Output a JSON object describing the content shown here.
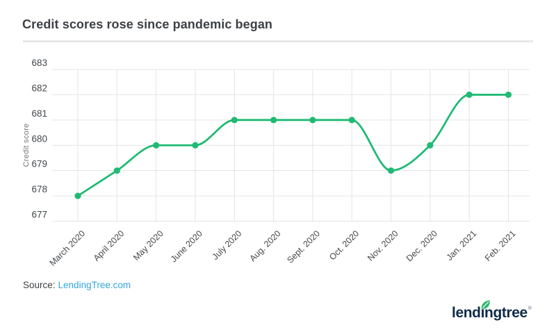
{
  "page": {
    "title": "Credit scores rose since pandemic began"
  },
  "source": {
    "prefix": "Source:",
    "link": "LendingTree.com"
  },
  "logo": {
    "text": "lendingtree",
    "registered": "®",
    "leaf_icon": "leaf-icon"
  },
  "colors": {
    "accent_green": "#1fba73",
    "leaf_green": "#2cb669",
    "link_blue": "#32a5dc",
    "logo_navy": "#0f2b4a",
    "grid_gray": "#e4e4e4",
    "axis_text": "#43474b",
    "muted_text": "#73777b",
    "title_text": "#3d4145",
    "divider_gray": "#e8e8e8"
  },
  "chart_data": {
    "type": "line",
    "title": "Credit scores rose since pandemic began",
    "xlabel": "",
    "ylabel": "Credit score",
    "categories": [
      "March 2020",
      "April 2020",
      "May 2020",
      "June 2020",
      "July 2020",
      "Aug. 2020",
      "Sept. 2020",
      "Oct. 2020",
      "Nov. 2020",
      "Dec. 2020",
      "Jan. 2021",
      "Feb. 2021"
    ],
    "series": [
      {
        "name": "Credit score",
        "values": [
          678,
          679,
          680,
          680,
          681,
          681,
          681,
          681,
          679,
          680,
          682,
          682
        ]
      }
    ],
    "ylim": [
      677,
      683
    ],
    "yticks": [
      677,
      678,
      679,
      680,
      681,
      682,
      683
    ],
    "grid": "on",
    "legend": "none",
    "marker": "circle",
    "line_style": "smooth"
  }
}
